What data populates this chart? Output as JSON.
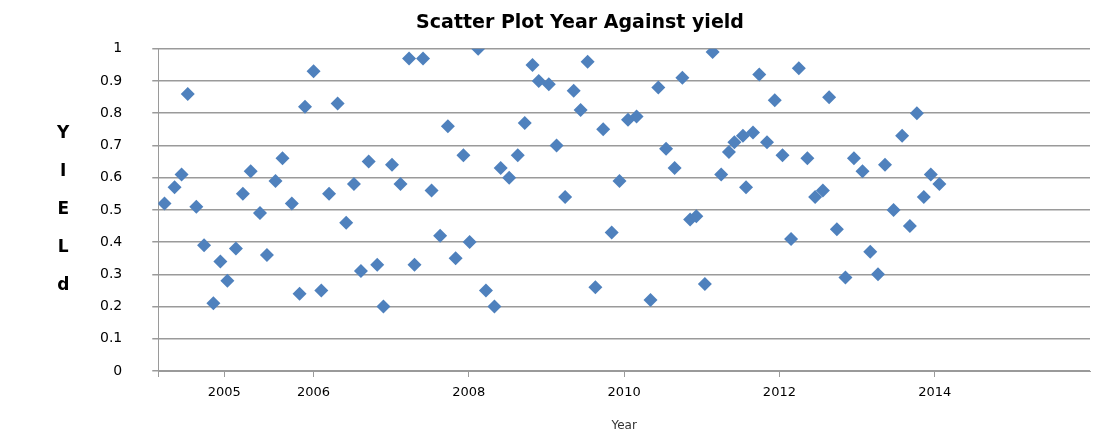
{
  "chart_data": {
    "type": "scatter",
    "title": "Scatter Plot Year Against yield",
    "xlabel": "Year",
    "ylabel": "YIELd",
    "xlim": [
      2004,
      2016
    ],
    "xticks": [
      {
        "value": 2004,
        "label": null
      },
      {
        "value": 2004.85,
        "label": "2005"
      },
      2006,
      2008,
      2010,
      2012,
      2014
    ],
    "ylim": [
      0,
      1
    ],
    "yticks": [
      0,
      0.1,
      0.2,
      0.3,
      0.4,
      0.5,
      0.6,
      0.7,
      0.8,
      0.9,
      1
    ],
    "grid": "y",
    "legend": false,
    "marker": "diamond",
    "series": [
      {
        "color": "#4f81bd",
        "x": [
          2004.08,
          2004.21,
          2004.3,
          2004.38,
          2004.49,
          2004.59,
          2004.71,
          2004.8,
          2004.89,
          2005.0,
          2005.09,
          2005.19,
          2005.31,
          2005.4,
          2005.51,
          2005.6,
          2005.72,
          2005.82,
          2005.89,
          2006.0,
          2006.1,
          2006.2,
          2006.31,
          2006.42,
          2006.52,
          2006.61,
          2006.71,
          2006.82,
          2006.9,
          2007.01,
          2007.12,
          2007.23,
          2007.41,
          2007.3,
          2007.52,
          2007.63,
          2007.73,
          2007.83,
          2007.93,
          2008.01,
          2008.12,
          2008.22,
          2008.33,
          2008.41,
          2008.52,
          2008.63,
          2008.72,
          2008.82,
          2008.9,
          2009.03,
          2009.13,
          2009.24,
          2009.35,
          2009.44,
          2009.53,
          2009.63,
          2009.73,
          2009.84,
          2009.94,
          2010.05,
          2010.16,
          2010.34,
          2010.44,
          2010.54,
          2010.65,
          2010.75,
          2010.85,
          2010.93,
          2011.04,
          2011.14,
          2011.25,
          2011.35,
          2011.42,
          2011.53,
          2011.66,
          2011.57,
          2011.74,
          2011.84,
          2011.94,
          2012.04,
          2012.15,
          2012.25,
          2012.36,
          2012.46,
          2012.56,
          2012.64,
          2012.74,
          2012.85,
          2012.96,
          2013.07,
          2013.17,
          2013.27,
          2013.36,
          2013.47,
          2013.58,
          2013.68,
          2013.77,
          2013.86,
          2013.95,
          2014.06
        ],
        "values": [
          0.52,
          0.57,
          0.61,
          0.86,
          0.51,
          0.39,
          0.21,
          0.34,
          0.28,
          0.38,
          0.55,
          0.62,
          0.49,
          0.36,
          0.59,
          0.66,
          0.52,
          0.24,
          0.82,
          0.93,
          0.25,
          0.55,
          0.83,
          0.46,
          0.58,
          0.31,
          0.65,
          0.33,
          0.2,
          0.64,
          0.58,
          0.97,
          0.97,
          0.33,
          0.56,
          0.42,
          0.76,
          0.35,
          0.67,
          0.4,
          1.0,
          0.25,
          0.2,
          0.63,
          0.6,
          0.67,
          0.77,
          0.95,
          0.9,
          0.89,
          0.7,
          0.54,
          0.87,
          0.81,
          0.96,
          0.26,
          0.75,
          0.43,
          0.59,
          0.78,
          0.79,
          0.22,
          0.88,
          0.69,
          0.63,
          0.91,
          0.47,
          0.48,
          0.27,
          0.99,
          0.61,
          0.68,
          0.71,
          0.73,
          0.74,
          0.57,
          0.92,
          0.71,
          0.84,
          0.67,
          0.41,
          0.94,
          0.66,
          0.54,
          0.56,
          0.85,
          0.44,
          0.29,
          0.66,
          0.62,
          0.37,
          0.3,
          0.64,
          0.5,
          0.73,
          0.45,
          0.8,
          0.54,
          0.61,
          0.58
        ]
      }
    ]
  }
}
